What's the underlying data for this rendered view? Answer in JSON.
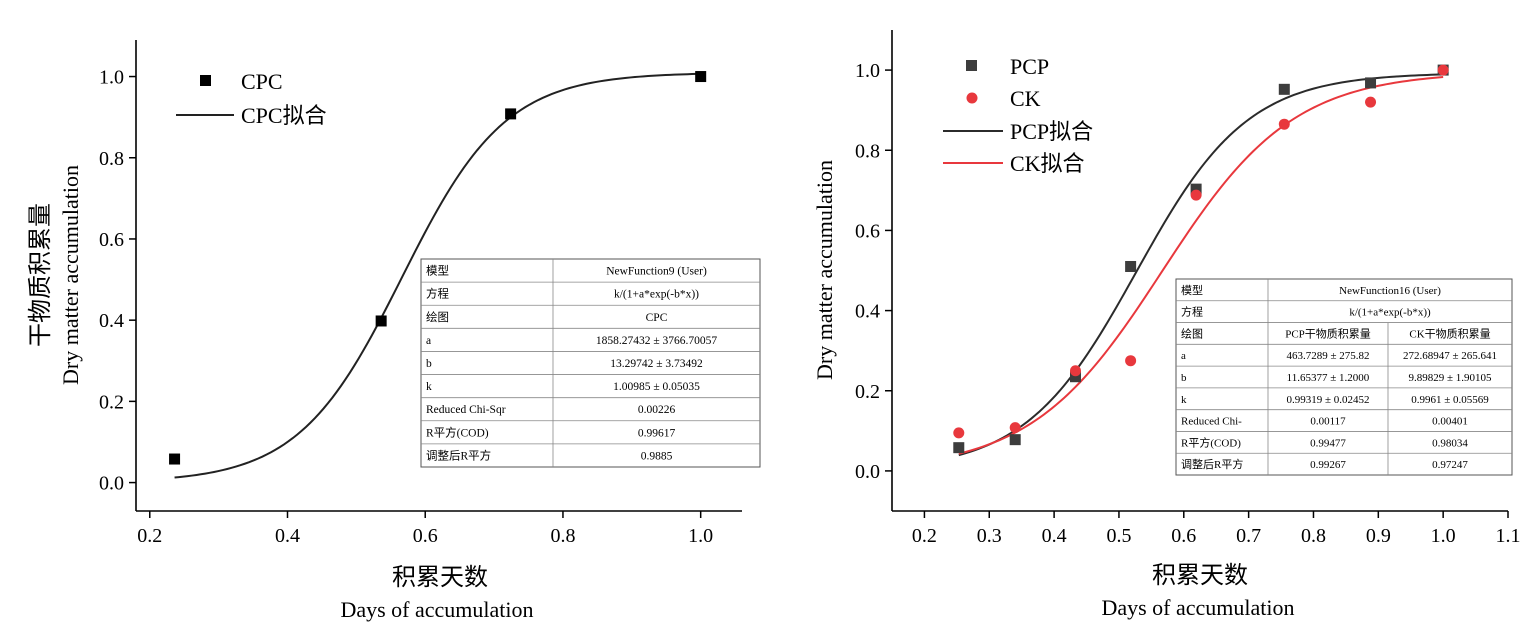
{
  "chart_data": [
    {
      "type": "scatter",
      "xlabel": "积累天数",
      "xlabel_en": "Days of accumulation",
      "ylabel": "干物质积累量",
      "ylabel_en": "Dry matter accumulation",
      "xlim": [
        0.18,
        1.06
      ],
      "ylim": [
        -0.07,
        1.09
      ],
      "xticks": [
        "0.2",
        "0.4",
        "0.6",
        "0.8",
        "1.0"
      ],
      "yticks": [
        "0.0",
        "0.2",
        "0.4",
        "0.6",
        "0.8",
        "1.0"
      ],
      "legend_position": "top-left",
      "grid": false,
      "series": [
        {
          "name": "CPC",
          "kind": "points",
          "marker": "square",
          "color": "#000000",
          "x": [
            0.236,
            0.536,
            0.724,
            1.0
          ],
          "y": [
            0.058,
            0.398,
            0.908,
            1.0
          ]
        },
        {
          "name": "CPC拟合",
          "kind": "fit",
          "color": "#222222",
          "model": {
            "a": 1858.27432,
            "b": 13.29742,
            "k": 1.00985
          },
          "x_range": [
            0.236,
            1.0
          ]
        }
      ],
      "table": {
        "rows": [
          [
            "模型",
            "NewFunction9 (User)"
          ],
          [
            "方程",
            "k/(1+a*exp(-b*x))"
          ],
          [
            "绘图",
            "CPC"
          ],
          [
            "a",
            "1858.27432 ± 3766.70057"
          ],
          [
            "b",
            "13.29742 ± 3.73492"
          ],
          [
            "k",
            "1.00985 ± 0.05035"
          ],
          [
            "Reduced Chi-Sqr",
            "0.00226"
          ],
          [
            "R平方(COD)",
            "0.99617"
          ],
          [
            "调整后R平方",
            "0.9885"
          ]
        ]
      }
    },
    {
      "type": "scatter",
      "xlabel": "积累天数",
      "xlabel_en": "Days of accumulation",
      "ylabel_en": "Dry matter accumulation",
      "xlim": [
        0.15,
        1.1
      ],
      "ylim": [
        -0.1,
        1.1
      ],
      "xticks": [
        "0.2",
        "0.3",
        "0.4",
        "0.5",
        "0.6",
        "0.7",
        "0.8",
        "0.9",
        "1.0",
        "1.1"
      ],
      "yticks": [
        "0.0",
        "0.2",
        "0.4",
        "0.6",
        "0.8",
        "1.0"
      ],
      "legend_position": "top-left",
      "grid": false,
      "series": [
        {
          "name": "PCP",
          "kind": "points",
          "marker": "square",
          "color": "#3d3d3d",
          "x": [
            0.253,
            0.34,
            0.433,
            0.518,
            0.619,
            0.755,
            0.888,
            1.0
          ],
          "y": [
            0.058,
            0.078,
            0.235,
            0.51,
            0.703,
            0.952,
            0.968,
            1.0
          ]
        },
        {
          "name": "CK",
          "kind": "points",
          "marker": "circle",
          "color": "#e8383d",
          "x": [
            0.253,
            0.34,
            0.433,
            0.518,
            0.619,
            0.755,
            0.888,
            1.0
          ],
          "y": [
            0.095,
            0.108,
            0.25,
            0.275,
            0.688,
            0.865,
            0.92,
            1.0
          ]
        },
        {
          "name": "PCP拟合",
          "kind": "fit",
          "color": "#2b2b2b",
          "model": {
            "a": 463.7289,
            "b": 11.65377,
            "k": 0.99319
          },
          "x_range": [
            0.253,
            1.0
          ]
        },
        {
          "name": "CK拟合",
          "kind": "fit",
          "color": "#e8383d",
          "model": {
            "a": 272.68947,
            "b": 9.89829,
            "k": 0.9961
          },
          "x_range": [
            0.253,
            1.0
          ]
        }
      ],
      "table": {
        "rows": [
          [
            "模型",
            "NewFunction16 (User)"
          ],
          [
            "方程",
            "k/(1+a*exp(-b*x))"
          ],
          [
            "绘图",
            "PCP干物质积累量",
            "CK干物质积累量"
          ],
          [
            "a",
            "463.7289 ± 275.82",
            "272.68947 ± 265.641"
          ],
          [
            "b",
            "11.65377 ± 1.2000",
            "9.89829 ± 1.90105"
          ],
          [
            "k",
            "0.99319 ± 0.02452",
            "0.9961 ± 0.05569"
          ],
          [
            "Reduced Chi-",
            "0.00117",
            "0.00401"
          ],
          [
            "R平方(COD)",
            "0.99477",
            "0.98034"
          ],
          [
            "调整后R平方",
            "0.99267",
            "0.97247"
          ]
        ]
      }
    }
  ]
}
